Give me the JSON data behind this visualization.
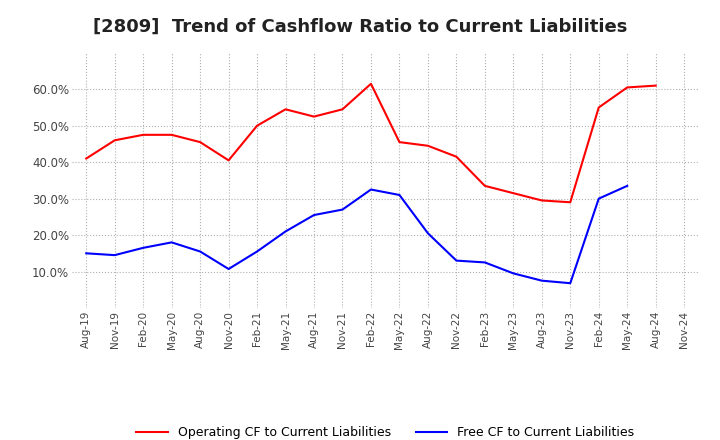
{
  "title": "[2809]  Trend of Cashflow Ratio to Current Liabilities",
  "x_labels": [
    "Aug-19",
    "Nov-19",
    "Feb-20",
    "May-20",
    "Aug-20",
    "Nov-20",
    "Feb-21",
    "May-21",
    "Aug-21",
    "Nov-21",
    "Feb-22",
    "May-22",
    "Aug-22",
    "Nov-22",
    "Feb-23",
    "May-23",
    "Aug-23",
    "Nov-23",
    "Feb-24",
    "May-24",
    "Aug-24",
    "Nov-24"
  ],
  "operating_cf": [
    0.41,
    0.46,
    0.475,
    0.475,
    0.455,
    0.405,
    0.5,
    0.545,
    0.525,
    0.545,
    0.615,
    0.455,
    0.445,
    0.415,
    0.335,
    0.315,
    0.295,
    0.29,
    0.55,
    0.605,
    0.61,
    null
  ],
  "free_cf": [
    0.15,
    0.145,
    0.165,
    0.18,
    0.155,
    0.107,
    0.155,
    0.21,
    0.255,
    0.27,
    0.325,
    0.31,
    0.205,
    0.13,
    0.125,
    0.095,
    0.075,
    0.068,
    0.3,
    0.335,
    null,
    null
  ],
  "operating_color": "#ff0000",
  "free_color": "#0000ff",
  "ylim": [
    0.0,
    0.7
  ],
  "yticks": [
    0.1,
    0.2,
    0.3,
    0.4,
    0.5,
    0.6
  ],
  "background_color": "#ffffff",
  "grid_color": "#b0b0b0",
  "title_fontsize": 13,
  "legend_labels": [
    "Operating CF to Current Liabilities",
    "Free CF to Current Liabilities"
  ]
}
